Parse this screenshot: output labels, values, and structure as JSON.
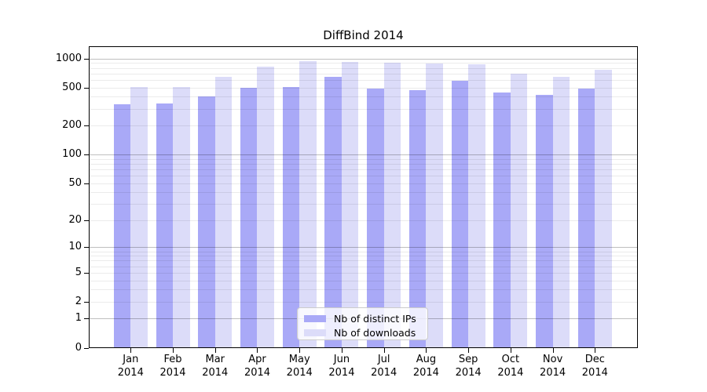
{
  "chart_data": {
    "type": "bar",
    "title": "DiffBind 2014",
    "categories": [
      "Jan",
      "Feb",
      "Mar",
      "Apr",
      "May",
      "Jun",
      "Jul",
      "Aug",
      "Sep",
      "Oct",
      "Nov",
      "Dec"
    ],
    "x_tick_second_line": "2014",
    "series": [
      {
        "name": "Nb of distinct IPs",
        "color": "#a9a9f7",
        "values": [
          335,
          340,
          405,
          500,
          510,
          650,
          490,
          470,
          585,
          440,
          420,
          490
        ]
      },
      {
        "name": "Nb of downloads",
        "color": "#dcdcf9",
        "values": [
          510,
          510,
          640,
          830,
          945,
          915,
          910,
          890,
          865,
          695,
          650,
          765
        ]
      }
    ],
    "y_scale": "log1p",
    "y_ticks": [
      0,
      1,
      2,
      5,
      10,
      20,
      50,
      100,
      200,
      500,
      1000
    ],
    "y_major_grid": [
      1,
      10,
      100,
      1000
    ],
    "ylim": [
      0,
      1340
    ],
    "xlabel": "",
    "ylabel": "",
    "grid": "on",
    "legend": {
      "position": "bottom-center-inside",
      "entries": [
        "Nb of distinct IPs",
        "Nb of downloads"
      ]
    },
    "colors": {
      "background": "#ffffff",
      "axis": "#000000",
      "text": "#000000",
      "grid_major": "rgba(0,0,0,0.25)",
      "grid_minor": "rgba(0,0,0,0.08)",
      "legend_border": "#cccccc",
      "legend_bg": "rgba(255,255,255,0.8)"
    }
  }
}
